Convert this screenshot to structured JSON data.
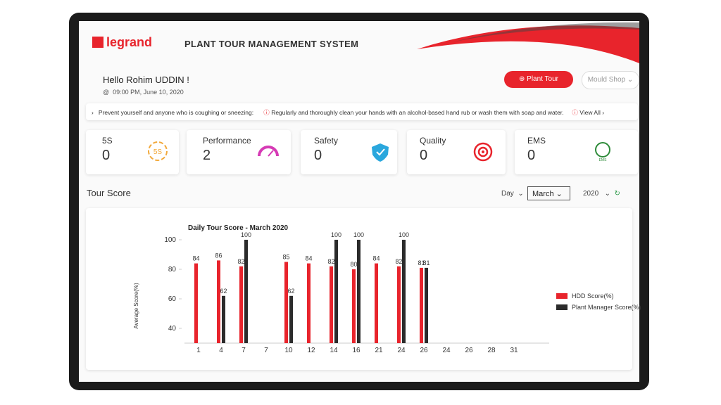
{
  "header": {
    "logo": "legrand",
    "title": "PLANT TOUR MANAGEMENT SYSTEM"
  },
  "greeting": {
    "text": "Hello Rohim UDDIN !",
    "time": "09:00 PM, June 10, 2020"
  },
  "buttons": {
    "plant_tour": "Plant Tour",
    "shop": "Mould Shop"
  },
  "tips": {
    "items": [
      "Prevent yourself and anyone who is coughing or sneezing:",
      "Regularly and thoroughly clean your hands with an alcohol-based hand rub or wash them with soap and water."
    ],
    "view_all": "View All"
  },
  "cards": [
    {
      "label": "5S",
      "value": "0",
      "icon": "5S"
    },
    {
      "label": "Performance",
      "value": "2"
    },
    {
      "label": "Safety",
      "value": "0"
    },
    {
      "label": "Quality",
      "value": "0"
    },
    {
      "label": "EMS",
      "value": "0",
      "icon": "EMS"
    }
  ],
  "tour_score": {
    "title": "Tour Score",
    "period": "Day",
    "month": "March",
    "year": "2020"
  },
  "chart_data": {
    "type": "bar",
    "title": "Daily Tour Score - March 2020",
    "y_label": "Average Score(%)",
    "categories": [
      "1",
      "4",
      "7",
      "7",
      "10",
      "12",
      "14",
      "16",
      "21",
      "24",
      "26",
      "24",
      "26",
      "28",
      "31"
    ],
    "series": [
      {
        "name": "HDD Score(%)",
        "color": "#e8242c",
        "values": [
          84,
          86,
          82,
          null,
          85,
          84,
          82,
          80,
          84,
          82,
          81,
          null,
          null,
          null,
          null
        ]
      },
      {
        "name": "Plant Manager Score(%)",
        "color": "#2b2b2b",
        "values": [
          null,
          62,
          100,
          null,
          62,
          null,
          100,
          100,
          null,
          100,
          81,
          null,
          null,
          null,
          null
        ]
      }
    ],
    "ylim": [
      30,
      100
    ],
    "yticks": [
      40,
      60,
      80,
      100
    ],
    "legend": "right"
  }
}
